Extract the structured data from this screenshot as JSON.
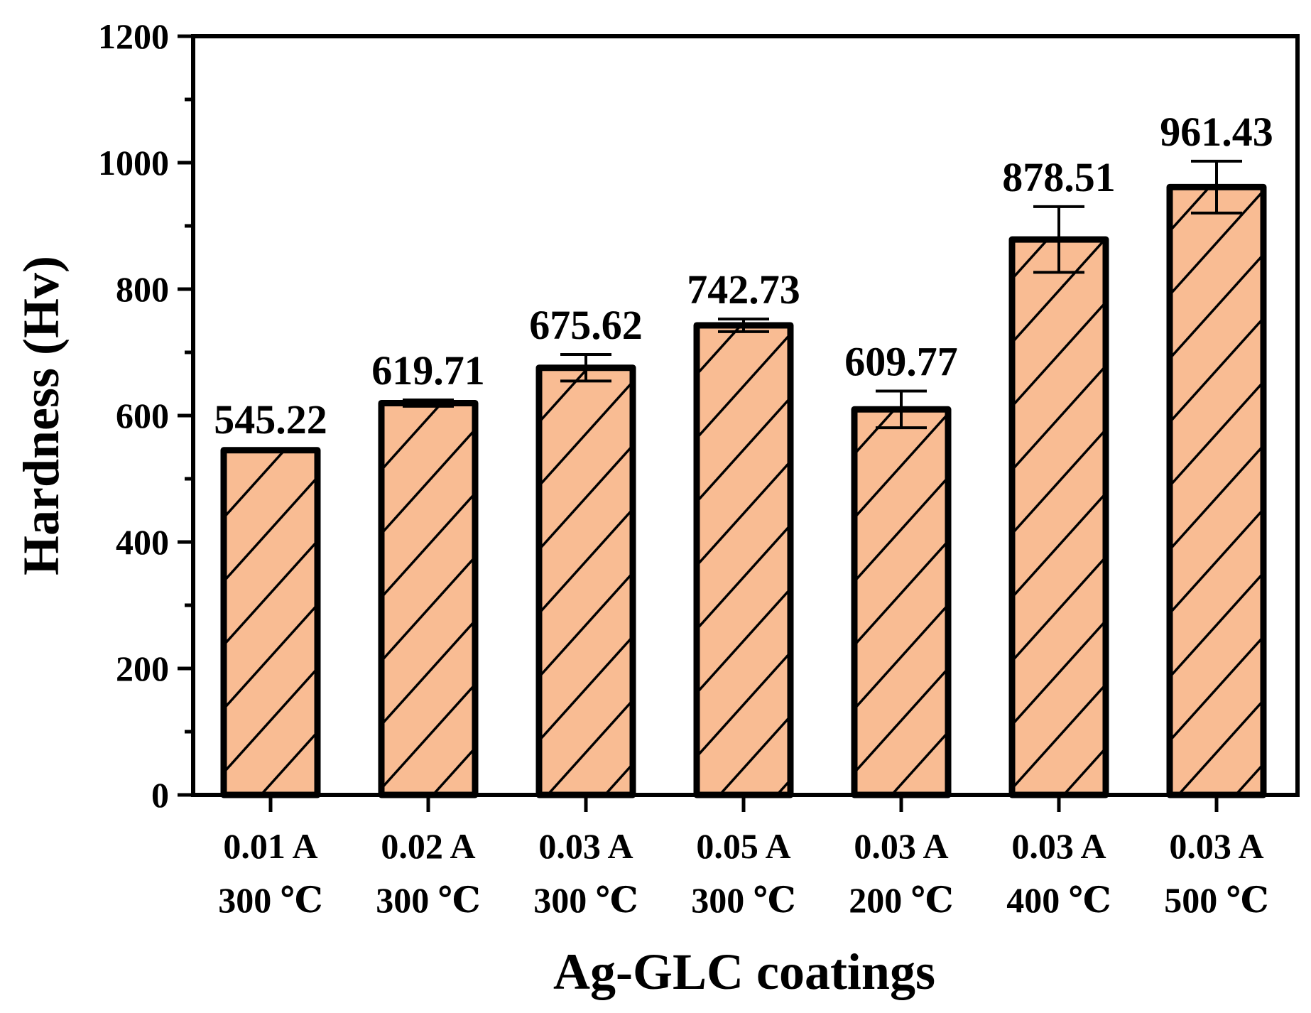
{
  "chart_data": {
    "type": "bar",
    "title": "",
    "xlabel": "Ag-GLC coatings",
    "ylabel": "Hardness (Hv)",
    "ylim": [
      0,
      1200
    ],
    "yticks": [
      0,
      200,
      400,
      600,
      800,
      1000,
      1200
    ],
    "ytick_labels": [
      "0",
      "200",
      "400",
      "600",
      "800",
      "1000",
      "1200"
    ],
    "grid": false,
    "categories": [
      [
        "0.01 A",
        "300 ℃"
      ],
      [
        "0.02 A",
        "300 ℃"
      ],
      [
        "0.03 A",
        "300 ℃"
      ],
      [
        "0.05 A",
        "300 ℃"
      ],
      [
        "0.03 A",
        "200 ℃"
      ],
      [
        "0.03 A",
        "400 ℃"
      ],
      [
        "0.03 A",
        "500 ℃"
      ]
    ],
    "values": [
      545.22,
      619.71,
      675.62,
      742.73,
      609.77,
      878.51,
      961.43
    ],
    "value_labels": [
      "545.22",
      "619.71",
      "675.62",
      "742.73",
      "609.77",
      "878.51",
      "961.43"
    ],
    "errors": [
      2,
      5,
      21,
      10,
      29,
      52,
      41
    ],
    "bar_color": "#F9BC93",
    "hatch": "diagonal"
  }
}
